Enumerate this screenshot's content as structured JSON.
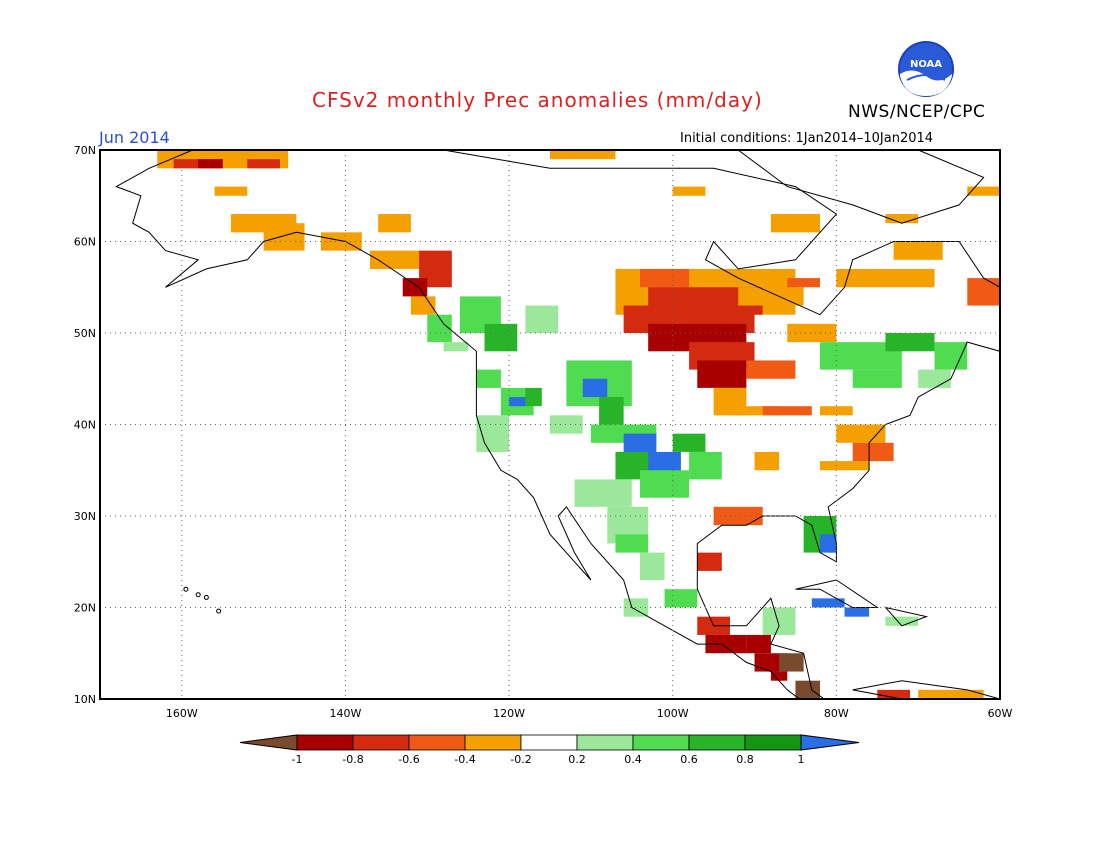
{
  "title": "CFSv2 monthly Prec anomalies (mm/day)",
  "period": "Jun 2014",
  "initial_conditions": "Initial conditions: 1Jan2014–10Jan2014",
  "agency": "NWS/NCEP/CPC",
  "logo_text": "NOAA",
  "map": {
    "lon_range": [
      -170,
      -60
    ],
    "lat_range": [
      10,
      70
    ],
    "lat_labels": [
      "70N",
      "60N",
      "50N",
      "40N",
      "30N",
      "20N",
      "10N"
    ],
    "lon_labels": [
      "160W",
      "140W",
      "120W",
      "100W",
      "80W",
      "60W"
    ],
    "grid": "dotted"
  },
  "colorbar": {
    "ticks": [
      "-1",
      "-0.8",
      "-0.6",
      "-0.4",
      "-0.2",
      "0.2",
      "0.4",
      "0.6",
      "0.8",
      "1"
    ],
    "colors": [
      "#7a4a2e",
      "#a80000",
      "#d42a10",
      "#f05a14",
      "#f4a000",
      "#ffffff",
      "#9be89b",
      "#50dc50",
      "#28b428",
      "#149614",
      "#2a6ee6"
    ]
  }
}
